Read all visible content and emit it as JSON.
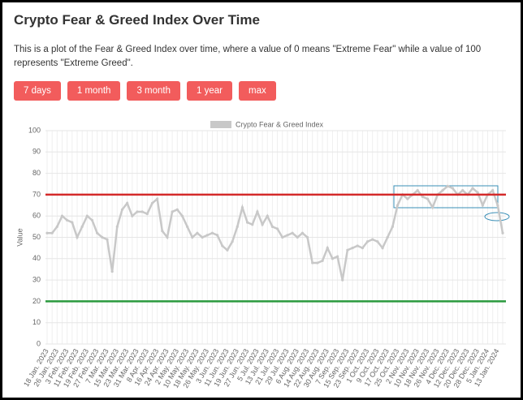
{
  "title": "Crypto Fear & Greed Index Over Time",
  "description": "This is a plot of the Fear & Greed Index over time, where a value of 0 means \"Extreme Fear\" while a value of 100 represents \"Extreme Greed\".",
  "buttons": [
    "7 days",
    "1 month",
    "3 month",
    "1 year",
    "max"
  ],
  "chart_data": {
    "type": "line",
    "y_label": "Value",
    "categories": [
      "18 Jan. 2023",
      null,
      "26 Jan. 2023",
      null,
      "3 Feb. 2023",
      null,
      "11 Feb. 2023",
      null,
      "19 Feb. 2023",
      null,
      "27 Feb. 2023",
      null,
      "7 Mar. 2023",
      null,
      "15 Mar. 2023",
      null,
      "23 Mar. 2023",
      null,
      "31 Mar. 2023",
      null,
      "8 Apr. 2023",
      null,
      "16 Apr. 2023",
      null,
      "24 Apr. 2023",
      null,
      "2 May. 2023",
      null,
      "10 May. 2023",
      null,
      "18 May. 2023",
      null,
      "26 May. 2023",
      null,
      "3 Jun. 2023",
      null,
      "11 Jun. 2023",
      null,
      "19 Jun. 2023",
      null,
      "27 Jun. 2023",
      null,
      "5 Jul. 2023",
      null,
      "13 Jul. 2023",
      null,
      "21 Jul. 2023",
      null,
      "29 Jul. 2023",
      null,
      "6 Aug. 2023",
      null,
      "14 Aug. 2023",
      null,
      "22 Aug. 2023",
      null,
      "30 Aug. 2023",
      null,
      "7 Sep. 2023",
      null,
      "15 Sep. 2023",
      null,
      "23 Sep. 2023",
      null,
      "1 Oct. 2023",
      null,
      "9 Oct. 2023",
      null,
      "17 Oct. 2023",
      null,
      "25 Oct. 2023",
      null,
      "2 Nov. 2023",
      null,
      "10 Nov. 2023",
      null,
      "18 Nov. 2023",
      null,
      "26 Nov. 2023",
      null,
      "4 Dec. 2023",
      null,
      "12 Dec. 2023",
      null,
      "20 Dec. 2023",
      null,
      "28 Dec. 2023",
      null,
      "5 Jan. 2024",
      null,
      "13 Jan. 2024",
      null
    ],
    "series": [
      {
        "name": "Crypto Fear & Greed Index",
        "color": "#c8c8c8",
        "values": [
          52,
          52,
          55,
          60,
          58,
          57,
          50,
          55,
          60,
          58,
          52,
          50,
          49,
          34,
          55,
          63,
          66,
          60,
          62,
          62,
          61,
          66,
          68,
          53,
          50,
          62,
          63,
          60,
          55,
          50,
          52,
          50,
          51,
          52,
          51,
          46,
          44,
          48,
          55,
          64,
          57,
          56,
          62,
          56,
          60,
          55,
          54,
          50,
          51,
          52,
          50,
          52,
          50,
          38,
          38,
          39,
          45,
          40,
          41,
          30,
          44,
          45,
          46,
          45,
          48,
          49,
          48,
          45,
          50,
          55,
          65,
          70,
          68,
          70,
          72,
          69,
          68,
          64,
          70,
          72,
          74,
          73,
          70,
          72,
          70,
          73,
          71,
          65,
          70,
          72,
          65,
          52
        ]
      }
    ],
    "ylim": [
      0,
      100
    ],
    "yticks": [
      0,
      10,
      20,
      30,
      40,
      50,
      60,
      70,
      80,
      90,
      100
    ],
    "grid": true,
    "legend": "top",
    "reference_lines": [
      {
        "value": 70,
        "color": "#d42a2a"
      },
      {
        "value": 20,
        "color": "#2a9a3e"
      }
    ]
  }
}
